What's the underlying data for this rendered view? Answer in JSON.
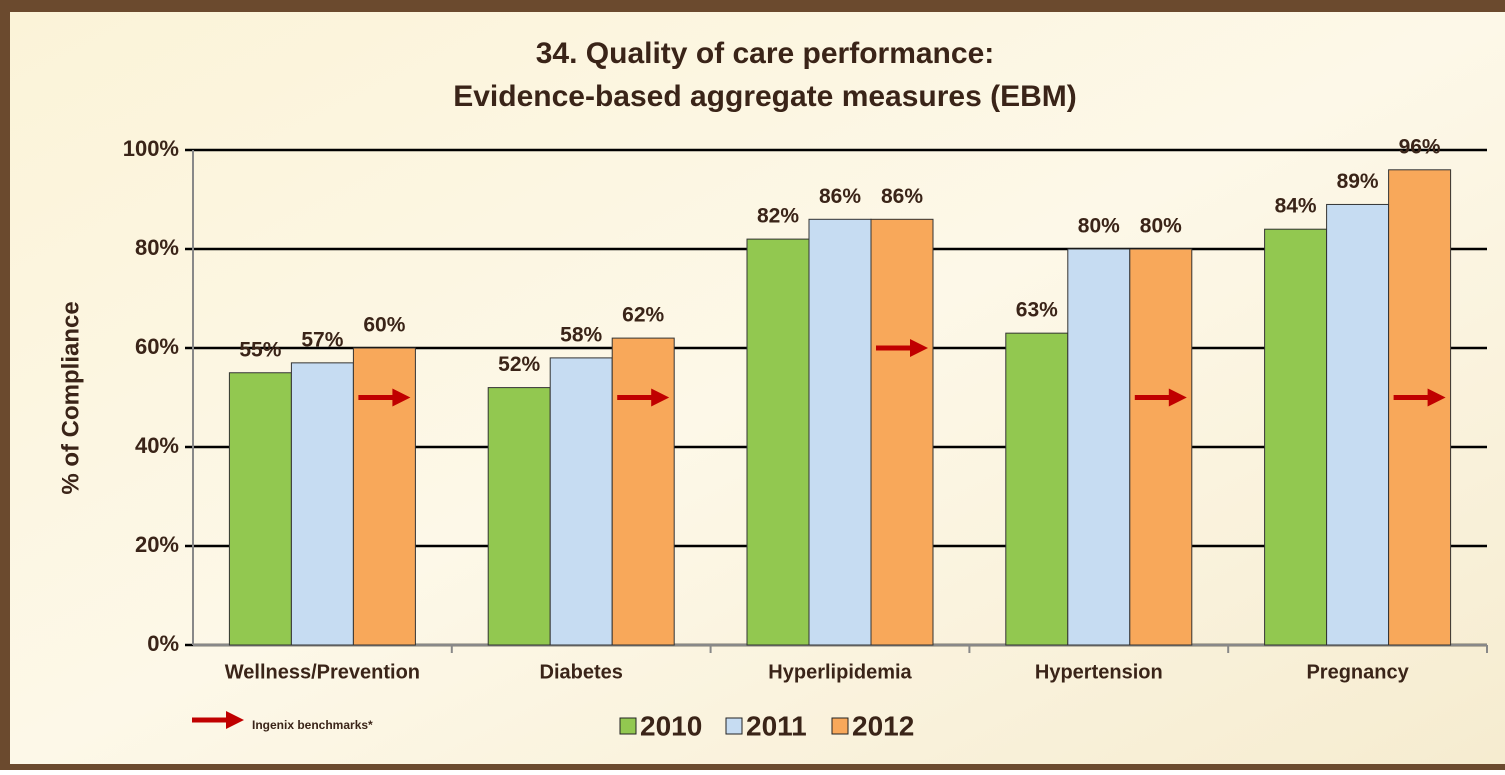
{
  "chart_data": {
    "type": "bar",
    "title": [
      "34. Quality of care performance:",
      "Evidence-based aggregate measures (EBM)"
    ],
    "y_label": "% of Compliance",
    "categories": [
      "Wellness/Prevention",
      "Diabetes",
      "Hyperlipidemia",
      "Hypertension",
      "Pregnancy"
    ],
    "series": [
      {
        "name": "2010",
        "color": "#92c850",
        "values": [
          55,
          52,
          82,
          63,
          84
        ],
        "value_labels": [
          "55%",
          "52%",
          "82%",
          "63%",
          "84%"
        ]
      },
      {
        "name": "2011",
        "color": "#c6dcf2",
        "values": [
          57,
          58,
          86,
          80,
          89
        ],
        "value_labels": [
          "57%",
          "58%",
          "86%",
          "80%",
          "89%"
        ]
      },
      {
        "name": "2012",
        "color": "#f8a85a",
        "values": [
          60,
          62,
          86,
          80,
          96
        ],
        "value_labels": [
          "60%",
          "62%",
          "86%",
          "80%",
          "96%"
        ]
      }
    ],
    "benchmark": {
      "name": "Ingenix benchmarks*",
      "color": "#c00000",
      "values": [
        50,
        50,
        60,
        50,
        50
      ]
    },
    "ylim": [
      0,
      100
    ],
    "yticks": [
      {
        "value": 0,
        "label": "0%"
      },
      {
        "value": 20,
        "label": "20%"
      },
      {
        "value": 40,
        "label": "40%"
      },
      {
        "value": 60,
        "label": "60%"
      },
      {
        "value": 80,
        "label": "80%"
      },
      {
        "value": 100,
        "label": "100%"
      }
    ],
    "grid": true
  }
}
